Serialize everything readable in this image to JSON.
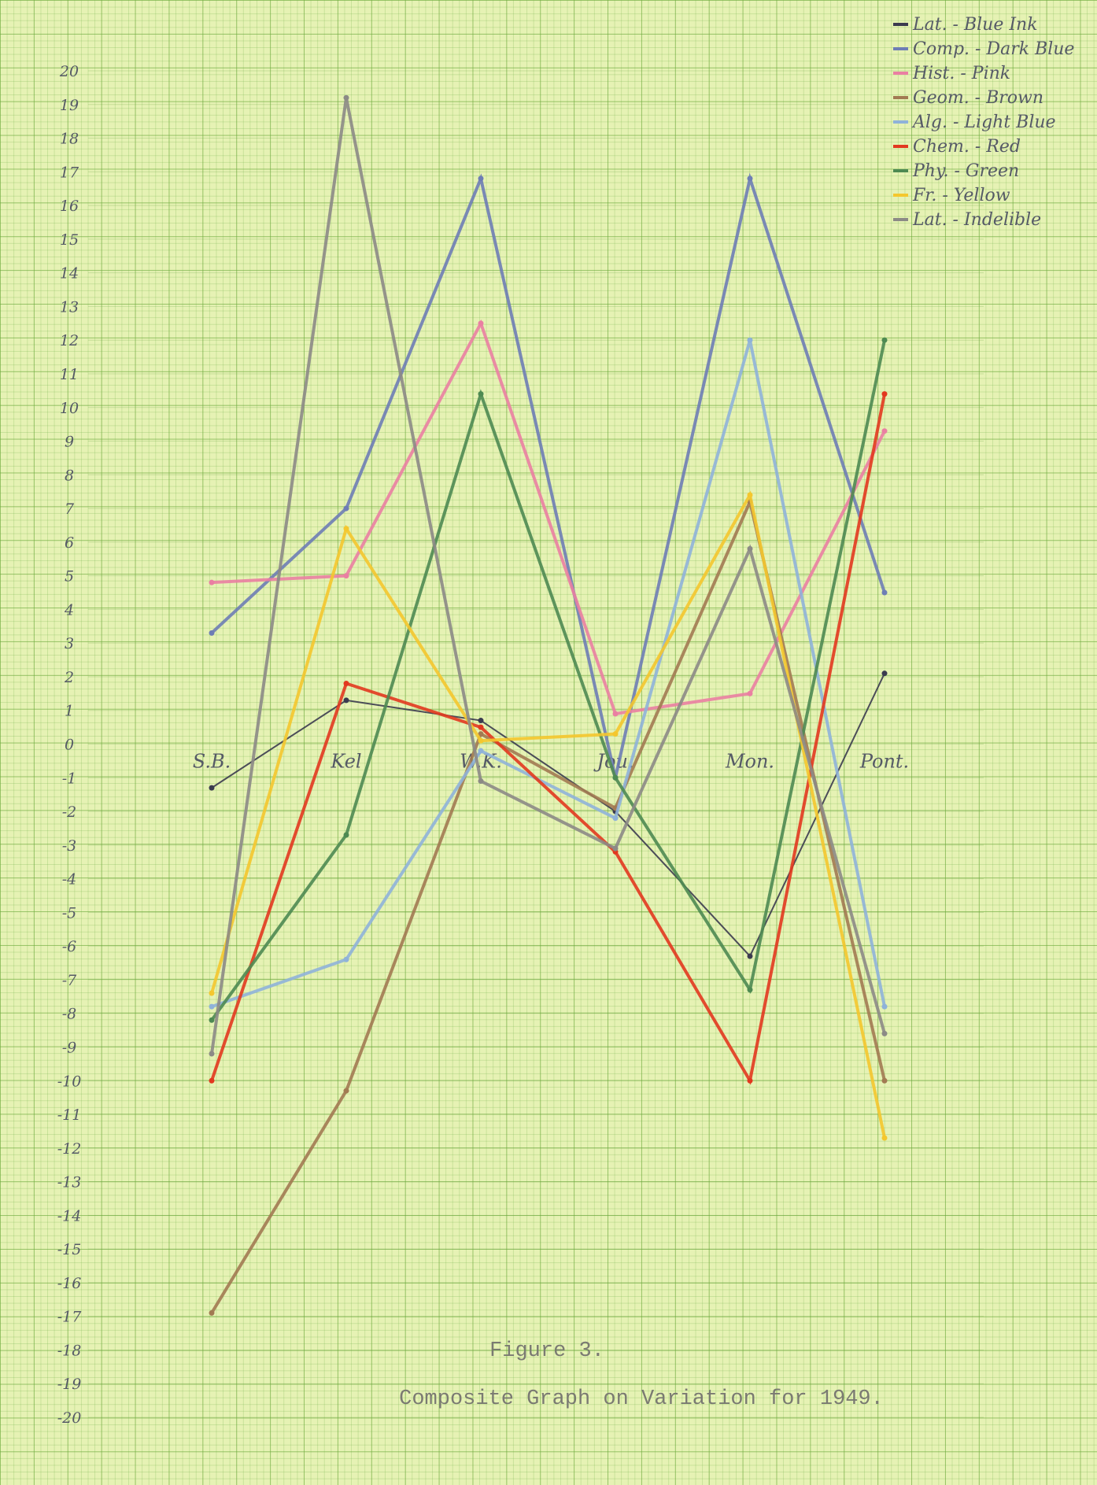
{
  "chart_data": {
    "type": "line",
    "caption": "Figure 3.",
    "title": "Composite Graph on Variation for 1949.",
    "categories": [
      "S.B.",
      "Kel",
      "W.K.",
      "Jou.",
      "Mon.",
      "Pont."
    ],
    "ylim": [
      -20,
      20
    ],
    "yticks": [
      -20,
      -19,
      -18,
      -17,
      -16,
      -15,
      -14,
      -13,
      -12,
      -11,
      -10,
      -9,
      -8,
      -7,
      -6,
      -5,
      -4,
      -3,
      -2,
      -1,
      0,
      1,
      2,
      3,
      4,
      5,
      6,
      7,
      8,
      9,
      10,
      11,
      12,
      13,
      14,
      15,
      16,
      17,
      18,
      19,
      20
    ],
    "grid": true,
    "legend": "top-right",
    "series": [
      {
        "name": "Lat. - Blue Ink",
        "color": "#3b3b4f",
        "values": [
          -1.3,
          1.3,
          0.7,
          -2,
          -6.3,
          2.1
        ]
      },
      {
        "name": "Comp. - Dark Blue",
        "color": "#6e7db5",
        "values": [
          3.3,
          7,
          16.8,
          -1,
          16.8,
          4.5
        ]
      },
      {
        "name": "Hist. - Pink",
        "color": "#ea7fa2",
        "values": [
          4.8,
          5,
          12.5,
          0.9,
          1.5,
          9.3
        ]
      },
      {
        "name": "Geom. - Brown",
        "color": "#a27a52",
        "values": [
          -16.9,
          -10.3,
          0.3,
          -1.9,
          7.2,
          -10
        ]
      },
      {
        "name": "Alg. - Light Blue",
        "color": "#8fb2d9",
        "values": [
          -7.8,
          -6.4,
          -0.2,
          -2.2,
          12,
          -7.8
        ]
      },
      {
        "name": "Chem. - Red",
        "color": "#e2381f",
        "values": [
          -10,
          1.8,
          0.5,
          -3.2,
          -10,
          10.4
        ]
      },
      {
        "name": "Phy. - Green",
        "color": "#4e8a52",
        "values": [
          -8.2,
          -2.7,
          10.4,
          -1,
          -7.3,
          12
        ]
      },
      {
        "name": "Fr. - Yellow",
        "color": "#f4c72e",
        "values": [
          -7.4,
          6.4,
          0.1,
          0.3,
          7.4,
          -11.7
        ]
      },
      {
        "name": "Lat. - Indelible",
        "color": "#8c8a86",
        "values": [
          -9.2,
          19.2,
          -1.1,
          -3.1,
          5.8,
          -8.6
        ]
      }
    ]
  }
}
